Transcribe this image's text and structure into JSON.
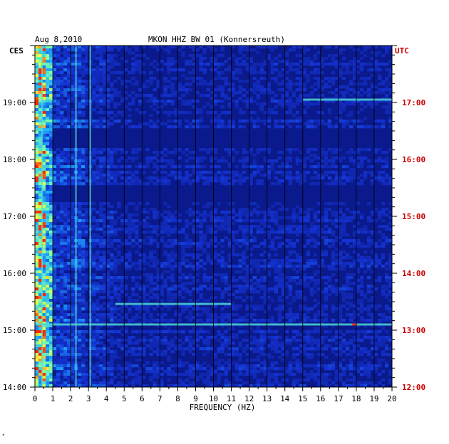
{
  "chart_data": {
    "type": "heatmap",
    "title": "MKON HHZ BW 01 (Konnersreuth)",
    "date": "Aug 8,2010",
    "left_timezone": "CES",
    "right_timezone": "UTC",
    "xlabel": "FREQUENCY (HZ)",
    "xlim": [
      0,
      20
    ],
    "x_ticks": [
      "0",
      "1",
      "2",
      "3",
      "4",
      "5",
      "6",
      "7",
      "8",
      "9",
      "10",
      "11",
      "12",
      "13",
      "14",
      "15",
      "16",
      "17",
      "18",
      "19",
      "20"
    ],
    "left_time_labels": [
      {
        "label": "19:00",
        "hour": 19
      },
      {
        "label": "18:00",
        "hour": 18
      },
      {
        "label": "17:00",
        "hour": 17
      },
      {
        "label": "16:00",
        "hour": 16
      },
      {
        "label": "15:00",
        "hour": 15
      },
      {
        "label": "14:00",
        "hour": 14
      }
    ],
    "right_time_labels": [
      {
        "label": "17:00",
        "hour": 17
      },
      {
        "label": "16:00",
        "hour": 16
      },
      {
        "label": "15:00",
        "hour": 15
      },
      {
        "label": "14:00",
        "hour": 14
      },
      {
        "label": "13:00",
        "hour": 13
      },
      {
        "label": "12:00",
        "hour": 12
      }
    ],
    "time_range_local_hours": [
      14,
      20
    ],
    "grid_vertical_every_hz": 1,
    "colors": {
      "background": "#0a1a8c",
      "gap_band": "#0b1466",
      "low": "#1a3ad0",
      "mid": "#22b8ff",
      "high": "#f2ff40",
      "peak": "#ff2a00",
      "right_axis_text": "#cc0000",
      "axis_text": "#000000"
    },
    "notable_lines": [
      {
        "freq_hz": 0.4,
        "description": "strong low-frequency band"
      },
      {
        "freq_hz": 2.3,
        "description": "persistent line"
      },
      {
        "freq_hz": 3.1,
        "description": "persistent line"
      }
    ],
    "notable_events": [
      {
        "time_local": 19.05,
        "freq_range_hz": [
          15,
          20
        ]
      },
      {
        "time_local": 15.46,
        "freq_range_hz": [
          4.5,
          11
        ]
      },
      {
        "time_local": 15.1,
        "freq_range_hz": [
          0,
          20
        ],
        "peak_hz": 17.9
      }
    ]
  }
}
